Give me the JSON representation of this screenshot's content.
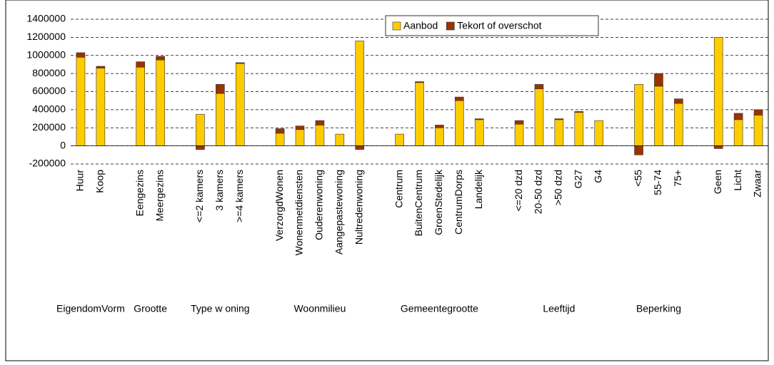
{
  "chart_data": {
    "type": "stacked_bar",
    "categories": [
      "Huur",
      "Koop",
      null,
      "Eengezins",
      "Meergezins",
      null,
      "<=2 kamers",
      "3 kamers",
      ">=4 kamers",
      null,
      "VerzorgdWonen",
      "Wonenmetdiensten",
      "Ouderenwoning",
      "Aangepastewoning",
      "Nultredenwoning",
      null,
      "Centrum",
      "BuitenCentrum",
      "GroenStedelijk",
      "CentrumDorps",
      "Landelijk",
      null,
      "<=20 dzd",
      "20-50 dzd",
      ">50 dzd",
      "G27",
      "G4",
      null,
      "<55",
      "55-74",
      "75+",
      null,
      "Geen",
      "Licht",
      "Zwaar"
    ],
    "series": [
      {
        "name": "Aanbod",
        "color": "#ffcc00",
        "values": [
          980000,
          860000,
          null,
          870000,
          950000,
          null,
          350000,
          580000,
          910000,
          null,
          140000,
          180000,
          230000,
          130000,
          1160000,
          null,
          130000,
          700000,
          200000,
          500000,
          290000,
          null,
          240000,
          630000,
          290000,
          370000,
          280000,
          null,
          680000,
          660000,
          470000,
          null,
          1200000,
          290000,
          340000
        ]
      },
      {
        "name": "Tekort of overschot",
        "color": "#993300",
        "values": [
          50000,
          20000,
          null,
          60000,
          40000,
          null,
          -40000,
          100000,
          10000,
          null,
          50000,
          40000,
          50000,
          0,
          -40000,
          null,
          0,
          10000,
          30000,
          40000,
          10000,
          null,
          40000,
          50000,
          10000,
          10000,
          0,
          null,
          -100000,
          140000,
          50000,
          null,
          -30000,
          70000,
          60000
        ]
      }
    ],
    "groups": [
      "EigendomVorm",
      "Grootte",
      "Type w oning",
      "Woonmilieu",
      "Gemeentegrootte",
      "Leeftijd",
      "Beperking"
    ],
    "ylim": [
      -200000,
      1400000
    ],
    "yticks": [
      -200000,
      0,
      200000,
      400000,
      600000,
      800000,
      1000000,
      1200000,
      1400000
    ],
    "grid": true,
    "legend": "top-right"
  }
}
